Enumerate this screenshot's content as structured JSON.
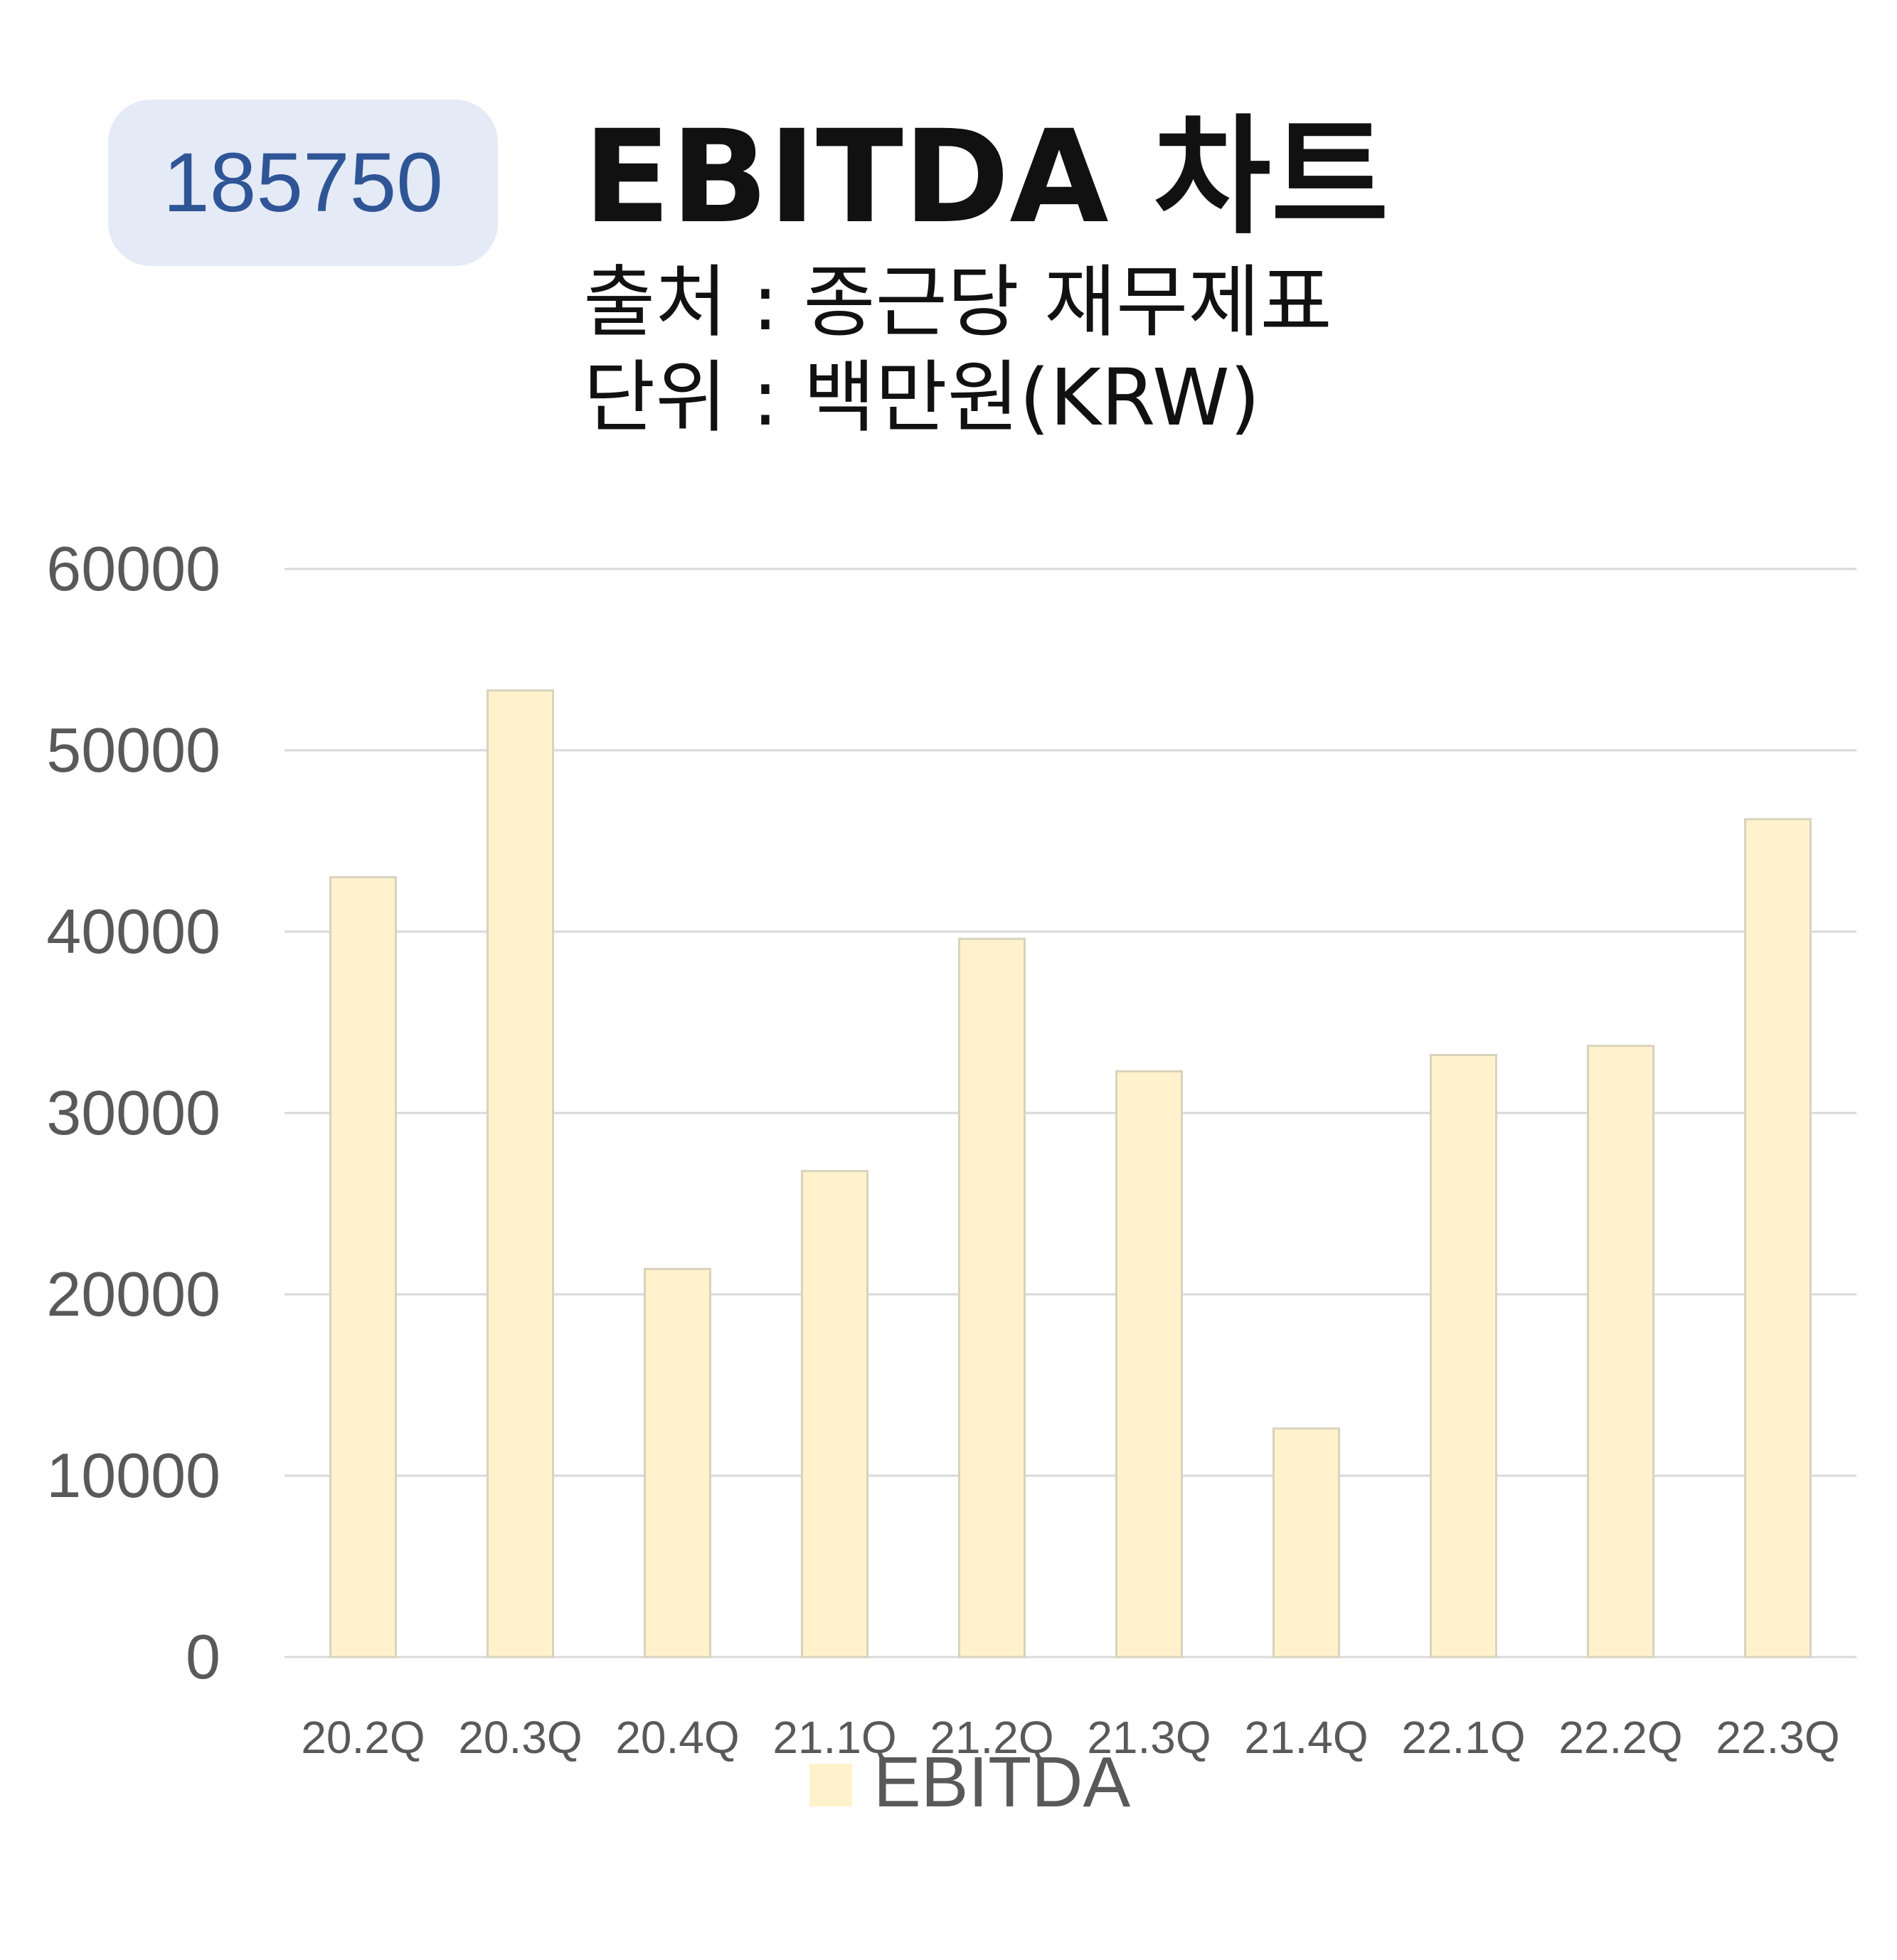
{
  "badge": {
    "code": "185750"
  },
  "header": {
    "title": "EBITDA 차트",
    "source": "출처 : 종근당 재무제표",
    "unit": "단위 : 백만원(KRW)"
  },
  "colors": {
    "bar": "#fff2cc",
    "bar_stroke": "#d9d2bd",
    "grid": "#d9d9d9",
    "tick": "#595959",
    "badge_bg": "#e4eaf6",
    "badge_text": "#2f5597"
  },
  "chart_data": {
    "type": "bar",
    "categories": [
      "20.2Q",
      "20.3Q",
      "20.4Q",
      "21.1Q",
      "21.2Q",
      "21.3Q",
      "21.4Q",
      "22.1Q",
      "22.2Q",
      "22.3Q"
    ],
    "series": [
      {
        "name": "EBITDA",
        "values": [
          43000,
          53300,
          21400,
          26800,
          39600,
          32300,
          12600,
          33200,
          33700,
          46200
        ]
      }
    ],
    "ylim": [
      0,
      60000
    ],
    "yticks": [
      0,
      10000,
      20000,
      30000,
      40000,
      50000,
      60000
    ],
    "grid": true,
    "legend": "bottom"
  }
}
